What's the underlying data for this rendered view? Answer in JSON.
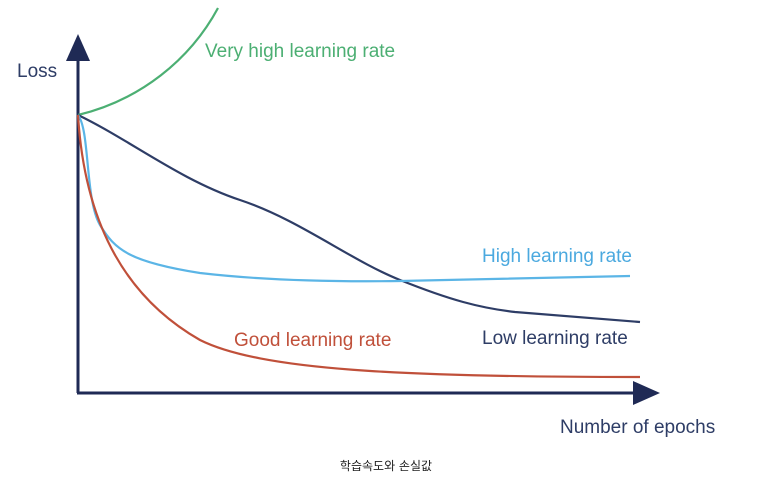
{
  "axes": {
    "y_label": "Loss",
    "x_label": "Number of epochs"
  },
  "curves": [
    {
      "label": "Very high learning rate"
    },
    {
      "label": "High learning rate"
    },
    {
      "label": "Low learning rate"
    },
    {
      "label": "Good learning rate"
    }
  ],
  "caption": "학습속도와 손실값"
}
